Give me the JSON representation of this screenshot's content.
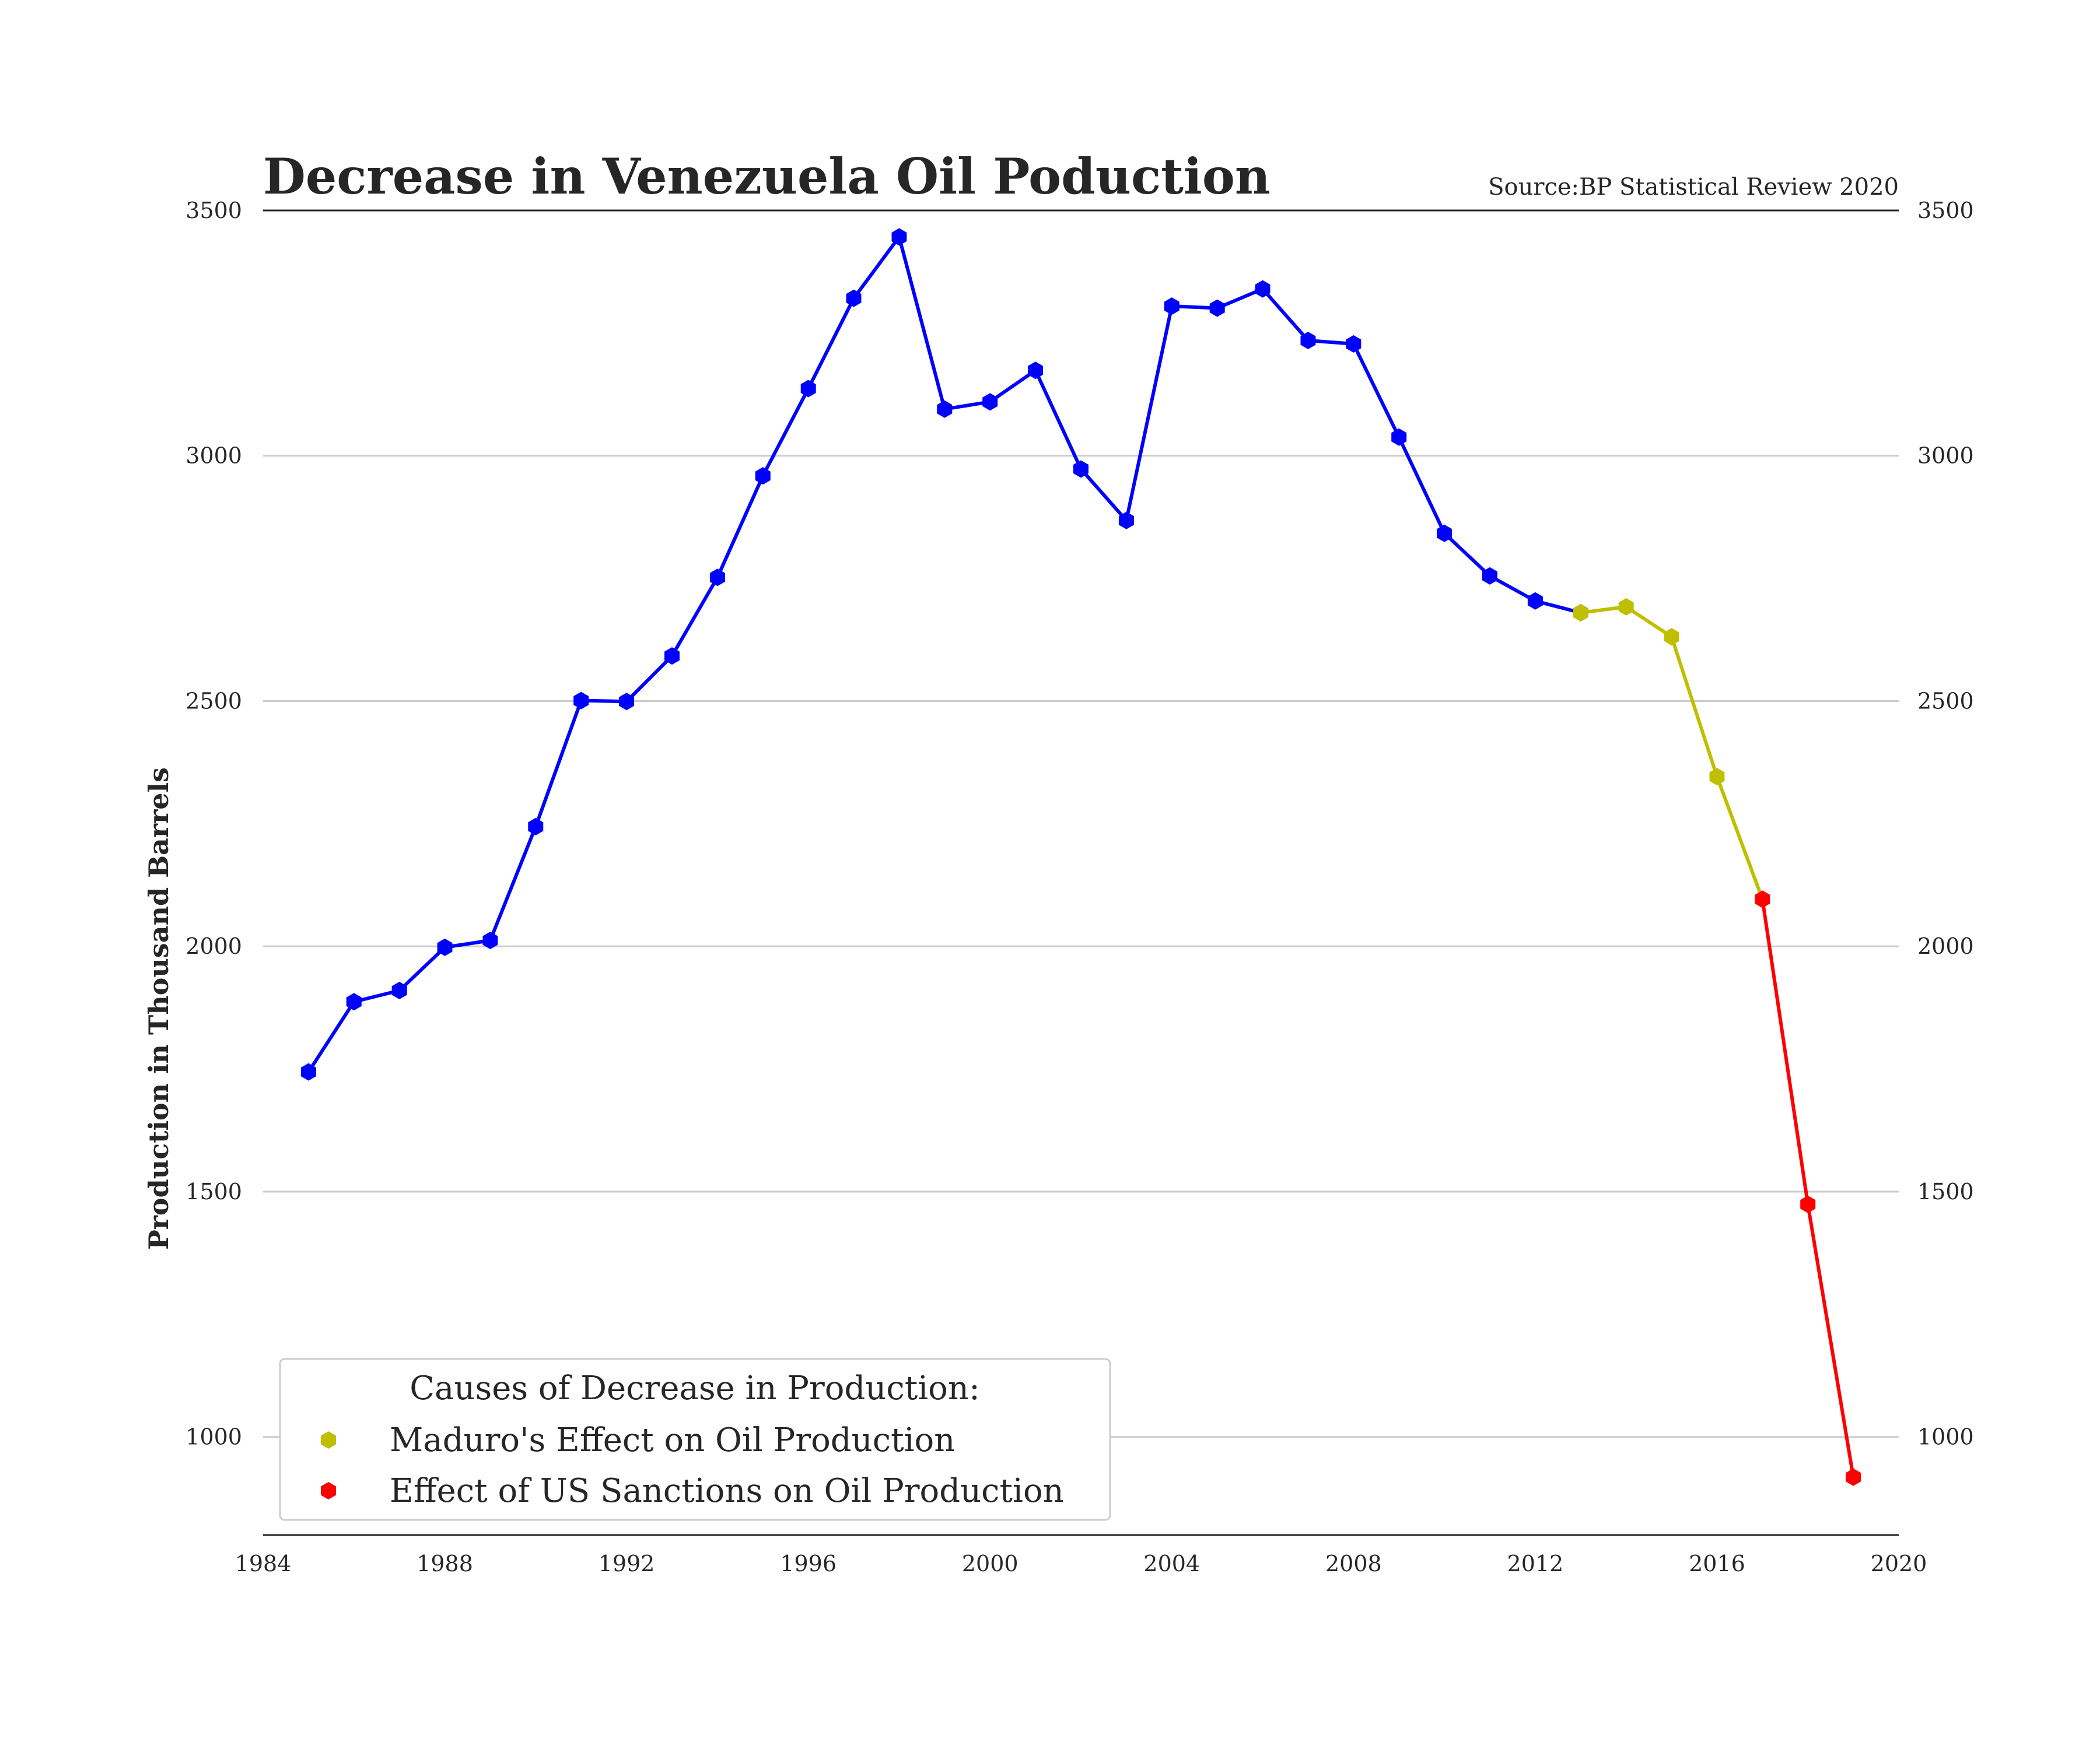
{
  "chart_data": {
    "type": "line",
    "title": "Decrease in Venezuela Oil Poduction",
    "source": "Source:BP Statistical Review 2020",
    "xlabel": "",
    "ylabel": "Production in Thousand Barrels",
    "xlim": [
      1984,
      2020
    ],
    "ylim": [
      800,
      3500
    ],
    "x_ticks": [
      "1984",
      "1988",
      "1992",
      "1996",
      "2000",
      "2004",
      "2008",
      "2012",
      "2016",
      "2020"
    ],
    "y_ticks": [
      "1000",
      "1500",
      "2000",
      "2500",
      "3000",
      "3500"
    ],
    "grid": "horizontal",
    "right_axis_labels": true,
    "legend": {
      "title": "Causes of Decrease in Production:",
      "position": "lower-left",
      "entries": [
        {
          "label": "Maduro's Effect on Oil Production",
          "color": "#bfbf00"
        },
        {
          "label": "Effect of US Sanctions on Oil Production",
          "color": "#ff0000"
        }
      ]
    },
    "series": [
      {
        "color": "#0000ff",
        "x": [
          1985,
          1986,
          1987,
          1988,
          1989,
          1990,
          1991,
          1992,
          1993,
          1994,
          1995,
          1996,
          1997,
          1998,
          1999,
          2000,
          2001,
          2002,
          2003,
          2004,
          2005,
          2006,
          2007,
          2008,
          2009,
          2010,
          2011,
          2012,
          2013
        ],
        "y": [
          1744,
          1887,
          1910,
          1998,
          2012,
          2244,
          2501,
          2499,
          2592,
          2752,
          2959,
          3137,
          3321,
          3446,
          3095,
          3110,
          3174,
          2973,
          2868,
          3305,
          3301,
          3340,
          3235,
          3228,
          3038,
          2842,
          2755,
          2704,
          2680
        ]
      },
      {
        "name": "Maduro's Effect on Oil Production",
        "color": "#bfbf00",
        "x": [
          2013,
          2014,
          2015,
          2016,
          2017
        ],
        "y": [
          2680,
          2692,
          2631,
          2346,
          2096
        ]
      },
      {
        "name": "Effect of US Sanctions on Oil Production",
        "color": "#ff0000",
        "x": [
          2017,
          2018,
          2019
        ],
        "y": [
          2096,
          1474,
          918
        ]
      }
    ]
  }
}
